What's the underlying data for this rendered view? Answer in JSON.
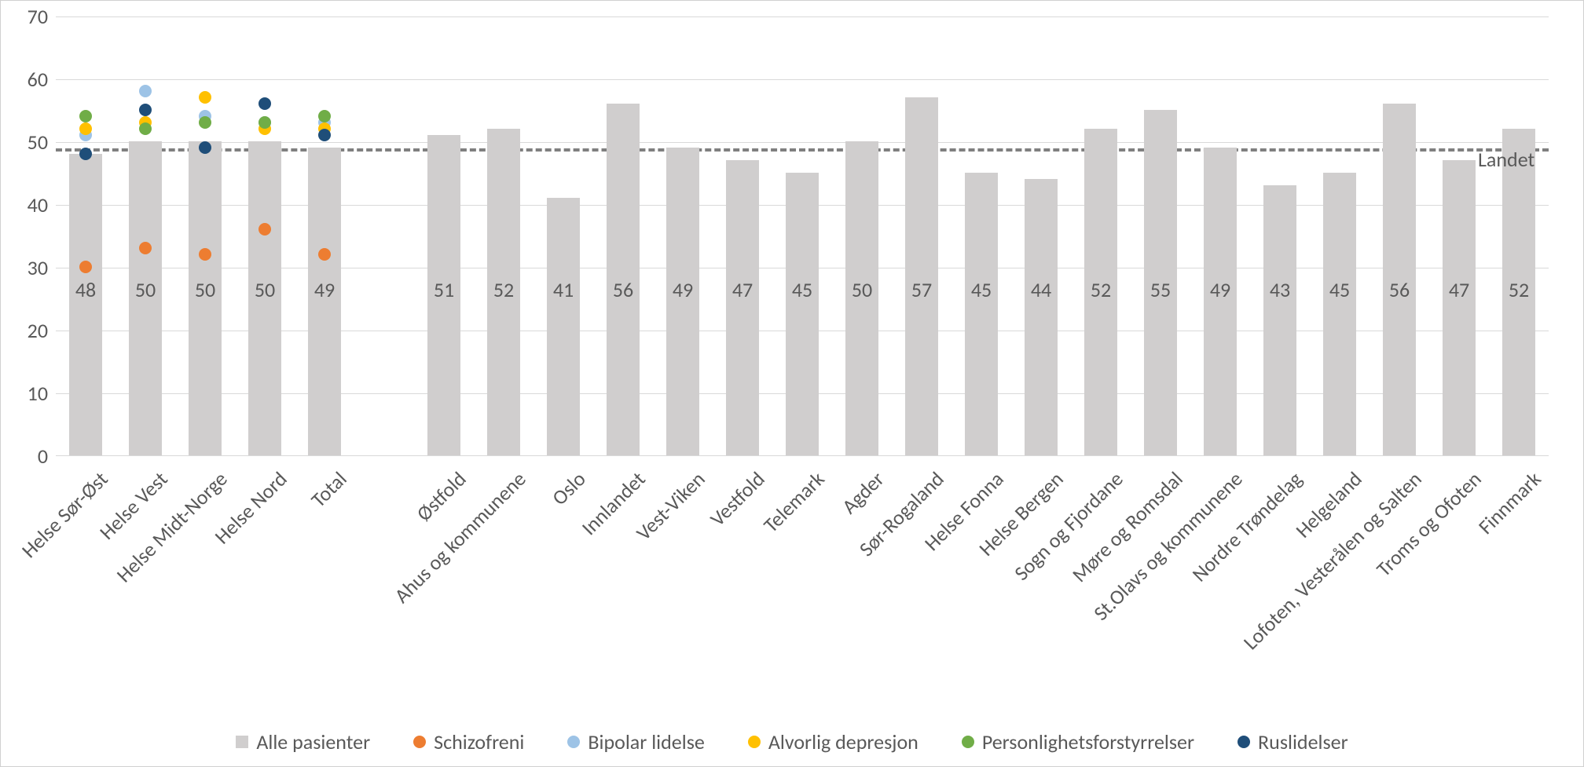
{
  "chart": {
    "type": "bar_with_markers_and_reference_line",
    "ylim": [
      0,
      70
    ],
    "ytick_step": 10,
    "yticks": [
      0,
      10,
      20,
      30,
      40,
      50,
      60,
      70
    ],
    "axis_fontsize": 26,
    "axis_color": "#595959",
    "gridline_color": "#d9d9d9",
    "background_color": "#ffffff",
    "border_color": "#d0d0d0",
    "reference_line": {
      "value": 49,
      "label": "Landet",
      "color": "#7f7f7f",
      "dash": true,
      "width": 4
    },
    "bar_color": "#d0cece",
    "bar_width_ratio": 0.55,
    "categories": [
      "Helse Sør-Øst",
      "Helse Vest",
      "Helse Midt-Norge",
      "Helse Nord",
      "Total",
      "",
      "Østfold",
      "Ahus og kommunene",
      "Oslo",
      "Innlandet",
      "Vest-Viken",
      "Vestfold",
      "Telemark",
      "Agder",
      "Sør-Rogaland",
      "Helse Fonna",
      "Helse Bergen",
      "Sogn og Fjordane",
      "Møre og Romsdal",
      "St.Olavs og kommunene",
      "Nordre Trøndelag",
      "Helgeland",
      "Lofoten, Vesterålen og Salten",
      "Troms og Ofoten",
      "Finnmark"
    ],
    "bars": [
      48,
      50,
      50,
      50,
      49,
      null,
      51,
      52,
      41,
      56,
      49,
      47,
      45,
      50,
      57,
      45,
      44,
      52,
      55,
      49,
      43,
      45,
      56,
      47,
      52
    ],
    "bar_labels": [
      "48",
      "50",
      "50",
      "50",
      "49",
      "",
      "51",
      "52",
      "41",
      "56",
      "49",
      "47",
      "45",
      "50",
      "57",
      "45",
      "44",
      "52",
      "55",
      "49",
      "43",
      "45",
      "56",
      "47",
      "52"
    ],
    "marker_series": {
      "Schizofreni": {
        "color": "#ed7d31",
        "values": [
          30,
          33,
          32,
          36,
          32
        ]
      },
      "Bipolar lidelse": {
        "color": "#9dc3e6",
        "values": [
          51,
          58,
          54,
          53,
          53
        ]
      },
      "Alvorlig depresjon": {
        "color": "#ffc000",
        "values": [
          52,
          53,
          57,
          52,
          52
        ]
      },
      "Personlighetsforstyrrelser": {
        "color": "#70ad47",
        "values": [
          54,
          52,
          53,
          53,
          54
        ]
      },
      "Ruslidelser": {
        "color": "#1f4e79",
        "values": [
          48,
          55,
          49,
          56,
          51
        ]
      }
    },
    "legend": [
      {
        "label": "Alle pasienter",
        "type": "square",
        "color": "#d0cece"
      },
      {
        "label": "Schizofreni",
        "type": "circle",
        "color": "#ed7d31"
      },
      {
        "label": "Bipolar lidelse",
        "type": "circle",
        "color": "#9dc3e6"
      },
      {
        "label": "Alvorlig depresjon",
        "type": "circle",
        "color": "#ffc000"
      },
      {
        "label": "Personlighetsforstyrrelser",
        "type": "circle",
        "color": "#70ad47"
      },
      {
        "label": "Ruslidelser",
        "type": "circle",
        "color": "#1f4e79"
      }
    ]
  }
}
